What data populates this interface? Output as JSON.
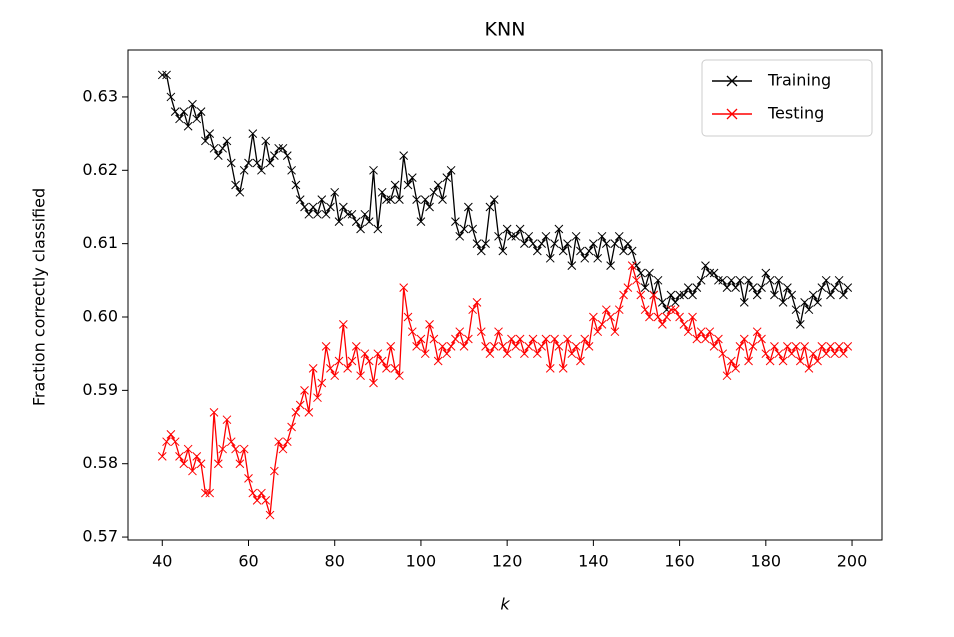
{
  "chart_data": {
    "type": "line",
    "title": "KNN",
    "xlabel": "k",
    "ylabel": "Fraction correctly classified",
    "x": [
      40,
      41,
      42,
      43,
      44,
      45,
      46,
      47,
      48,
      49,
      50,
      51,
      52,
      53,
      54,
      55,
      56,
      57,
      58,
      59,
      60,
      61,
      62,
      63,
      64,
      65,
      66,
      67,
      68,
      69,
      70,
      71,
      72,
      73,
      74,
      75,
      76,
      77,
      78,
      79,
      80,
      81,
      82,
      83,
      84,
      85,
      86,
      87,
      88,
      89,
      90,
      91,
      92,
      93,
      94,
      95,
      96,
      97,
      98,
      99,
      100,
      101,
      102,
      103,
      104,
      105,
      106,
      107,
      108,
      109,
      110,
      111,
      112,
      113,
      114,
      115,
      116,
      117,
      118,
      119,
      120,
      121,
      122,
      123,
      124,
      125,
      126,
      127,
      128,
      129,
      130,
      131,
      132,
      133,
      134,
      135,
      136,
      137,
      138,
      139,
      140,
      141,
      142,
      143,
      144,
      145,
      146,
      147,
      148,
      149,
      150,
      151,
      152,
      153,
      154,
      155,
      156,
      157,
      158,
      159,
      160,
      161,
      162,
      163,
      164,
      165,
      166,
      167,
      168,
      169,
      170,
      171,
      172,
      173,
      174,
      175,
      176,
      177,
      178,
      179,
      180,
      181,
      182,
      183,
      184,
      185,
      186,
      187,
      188,
      189,
      190,
      191,
      192,
      193,
      194,
      195,
      196,
      197,
      198,
      199
    ],
    "series": [
      {
        "name": "Training",
        "color": "#000000",
        "values": [
          0.633,
          0.633,
          0.63,
          0.628,
          0.627,
          0.628,
          0.626,
          0.629,
          0.627,
          0.628,
          0.624,
          0.625,
          0.623,
          0.622,
          0.623,
          0.624,
          0.621,
          0.618,
          0.617,
          0.62,
          0.621,
          0.625,
          0.621,
          0.62,
          0.624,
          0.621,
          0.622,
          0.623,
          0.623,
          0.622,
          0.62,
          0.618,
          0.616,
          0.615,
          0.614,
          0.615,
          0.614,
          0.616,
          0.614,
          0.615,
          0.617,
          0.613,
          0.615,
          0.614,
          0.614,
          0.613,
          0.612,
          0.614,
          0.613,
          0.62,
          0.612,
          0.617,
          0.616,
          0.616,
          0.618,
          0.616,
          0.622,
          0.618,
          0.619,
          0.616,
          0.613,
          0.616,
          0.615,
          0.617,
          0.618,
          0.616,
          0.619,
          0.62,
          0.613,
          0.611,
          0.612,
          0.615,
          0.612,
          0.61,
          0.609,
          0.61,
          0.615,
          0.616,
          0.611,
          0.609,
          0.612,
          0.611,
          0.611,
          0.612,
          0.61,
          0.611,
          0.61,
          0.609,
          0.61,
          0.611,
          0.608,
          0.61,
          0.612,
          0.609,
          0.61,
          0.607,
          0.611,
          0.609,
          0.608,
          0.609,
          0.61,
          0.608,
          0.611,
          0.61,
          0.607,
          0.61,
          0.611,
          0.609,
          0.61,
          0.609,
          0.607,
          0.606,
          0.604,
          0.606,
          0.603,
          0.605,
          0.602,
          0.601,
          0.603,
          0.602,
          0.603,
          0.603,
          0.604,
          0.603,
          0.604,
          0.605,
          0.607,
          0.606,
          0.606,
          0.605,
          0.605,
          0.604,
          0.605,
          0.604,
          0.605,
          0.602,
          0.605,
          0.604,
          0.603,
          0.604,
          0.606,
          0.605,
          0.603,
          0.605,
          0.602,
          0.604,
          0.603,
          0.601,
          0.599,
          0.602,
          0.601,
          0.603,
          0.602,
          0.604,
          0.605,
          0.603,
          0.604,
          0.605,
          0.603,
          0.604
        ]
      },
      {
        "name": "Testing",
        "color": "#ff0000",
        "values": [
          0.581,
          0.583,
          0.584,
          0.583,
          0.581,
          0.58,
          0.582,
          0.579,
          0.581,
          0.58,
          0.576,
          0.576,
          0.587,
          0.58,
          0.582,
          0.586,
          0.583,
          0.582,
          0.58,
          0.582,
          0.578,
          0.576,
          0.575,
          0.576,
          0.575,
          0.573,
          0.579,
          0.583,
          0.582,
          0.583,
          0.585,
          0.587,
          0.588,
          0.59,
          0.587,
          0.593,
          0.589,
          0.591,
          0.596,
          0.593,
          0.592,
          0.594,
          0.599,
          0.593,
          0.594,
          0.596,
          0.592,
          0.595,
          0.594,
          0.591,
          0.595,
          0.594,
          0.593,
          0.596,
          0.593,
          0.592,
          0.604,
          0.6,
          0.598,
          0.596,
          0.597,
          0.595,
          0.599,
          0.597,
          0.594,
          0.596,
          0.595,
          0.596,
          0.597,
          0.598,
          0.596,
          0.597,
          0.601,
          0.602,
          0.598,
          0.596,
          0.595,
          0.596,
          0.598,
          0.596,
          0.595,
          0.597,
          0.596,
          0.597,
          0.595,
          0.596,
          0.597,
          0.595,
          0.596,
          0.597,
          0.593,
          0.597,
          0.596,
          0.593,
          0.597,
          0.595,
          0.596,
          0.594,
          0.597,
          0.596,
          0.6,
          0.598,
          0.599,
          0.601,
          0.6,
          0.598,
          0.601,
          0.603,
          0.604,
          0.607,
          0.605,
          0.603,
          0.601,
          0.6,
          0.603,
          0.6,
          0.599,
          0.6,
          0.601,
          0.601,
          0.6,
          0.599,
          0.598,
          0.6,
          0.597,
          0.598,
          0.597,
          0.598,
          0.596,
          0.597,
          0.595,
          0.592,
          0.594,
          0.593,
          0.596,
          0.597,
          0.594,
          0.596,
          0.598,
          0.597,
          0.595,
          0.594,
          0.596,
          0.595,
          0.594,
          0.596,
          0.595,
          0.596,
          0.594,
          0.596,
          0.593,
          0.595,
          0.594,
          0.596,
          0.595,
          0.596,
          0.595,
          0.596,
          0.595,
          0.596
        ]
      }
    ],
    "xlim": [
      32.05,
      206.95
    ],
    "ylim": [
      0.5696,
      0.6364
    ],
    "xticks": [
      40,
      60,
      80,
      100,
      120,
      140,
      160,
      180,
      200
    ],
    "yticks": [
      0.57,
      0.58,
      0.59,
      {
        "value": 0.6,
        "label": "0.60"
      },
      0.61,
      0.62,
      0.63
    ],
    "legend": "upper right"
  }
}
